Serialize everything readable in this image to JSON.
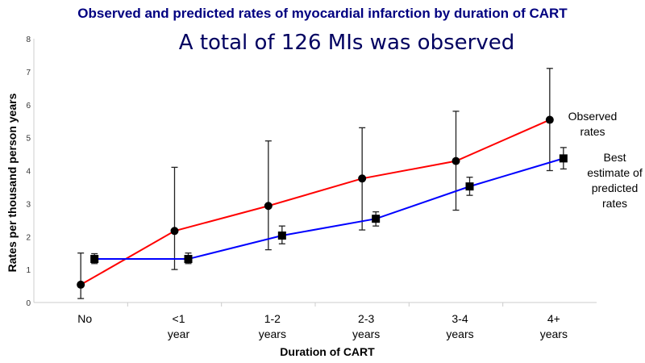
{
  "chart_data": {
    "type": "line",
    "title": "Observed and predicted rates of myocardial infarction by duration of CART",
    "annotation": "A total of 126 MIs was observed",
    "xlabel": "Duration of CART",
    "ylabel": "Rates per thousand person years",
    "ylim": [
      0,
      8
    ],
    "yticks": [
      "0",
      "1",
      "2",
      "3",
      "4",
      "5",
      "6",
      "7",
      "8"
    ],
    "categories": [
      "No",
      "<1 year",
      "1-2 years",
      "2-3 years",
      "3-4 years",
      "4+ years"
    ],
    "category_lines": [
      [
        "No"
      ],
      [
        "<1",
        "year"
      ],
      [
        "1-2",
        "years"
      ],
      [
        "2-3",
        "years"
      ],
      [
        "3-4",
        "years"
      ],
      [
        "4+",
        "years"
      ]
    ],
    "series": [
      {
        "name": "Observed rates",
        "color": "#ff0000",
        "marker": "circle",
        "values": [
          0.54,
          2.17,
          2.93,
          3.76,
          4.29,
          5.54
        ],
        "ci_low": [
          0.12,
          1.0,
          1.6,
          2.2,
          2.8,
          4.0
        ],
        "ci_high": [
          1.5,
          4.1,
          4.9,
          5.3,
          5.8,
          7.1
        ]
      },
      {
        "name": "Best estimate of predicted rates",
        "color": "#0000ff",
        "marker": "square",
        "values": [
          1.32,
          1.32,
          2.03,
          2.54,
          3.52,
          4.37
        ],
        "ci_low": [
          1.18,
          1.18,
          1.78,
          2.32,
          3.25,
          4.05
        ],
        "ci_high": [
          1.48,
          1.5,
          2.32,
          2.75,
          3.8,
          4.7
        ]
      }
    ],
    "legend_lines": [
      [
        "Observed",
        "rates"
      ],
      [
        "Best",
        "estimate of",
        "predicted",
        "rates"
      ]
    ]
  }
}
